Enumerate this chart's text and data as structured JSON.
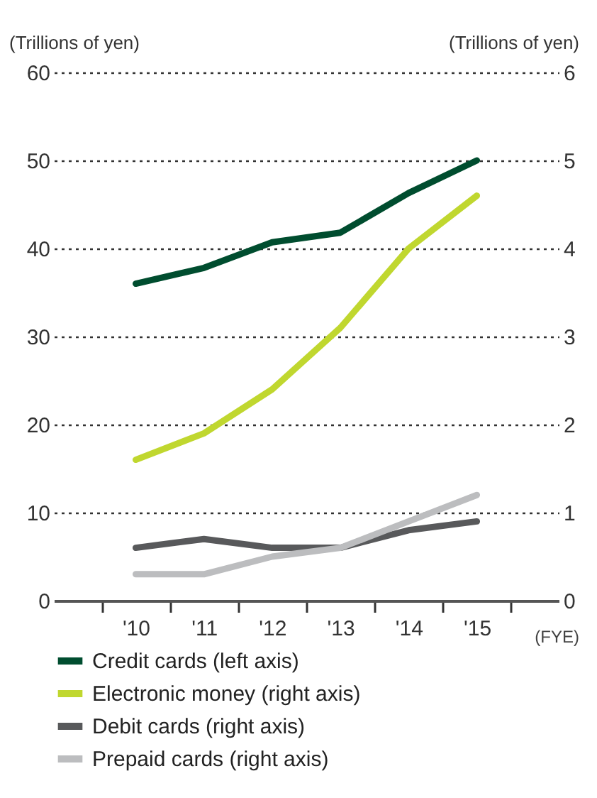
{
  "chart_data": {
    "type": "line",
    "categories": [
      "'10",
      "'11",
      "'12",
      "'13",
      "'14",
      "'15"
    ],
    "xlabel": "(FYE)",
    "ylabel": "(Trillions of yen)",
    "y2label": "(Trillions of yen)",
    "ylim": [
      0,
      60
    ],
    "yticks": [
      0,
      10,
      20,
      30,
      40,
      50,
      60
    ],
    "y2lim": [
      0,
      6
    ],
    "y2ticks": [
      0,
      1,
      2,
      3,
      4,
      5,
      6
    ],
    "grid": "y",
    "legend": "bottom",
    "line_style": "solid",
    "marker": "none",
    "series": [
      {
        "name": "Credit cards (left axis)",
        "color": "#004d2f",
        "values": [
          36,
          37.8,
          40.7,
          41.8,
          46.3,
          50
        ]
      },
      {
        "name": "Electronic money (right axis)",
        "color": "#c0d72f",
        "axis": "y2",
        "values": [
          1.6,
          1.9,
          2.4,
          3.1,
          4.0,
          4.6
        ]
      },
      {
        "name": "Debit cards (right axis)",
        "color": "#58595b",
        "axis": "y2",
        "values": [
          0.6,
          0.7,
          0.6,
          0.6,
          0.8,
          0.9
        ]
      },
      {
        "name": "Prepaid cards (right axis)",
        "color": "#bcbdbf",
        "axis": "y2",
        "values": [
          0.3,
          0.3,
          0.5,
          0.6,
          0.9,
          1.2
        ]
      }
    ]
  }
}
